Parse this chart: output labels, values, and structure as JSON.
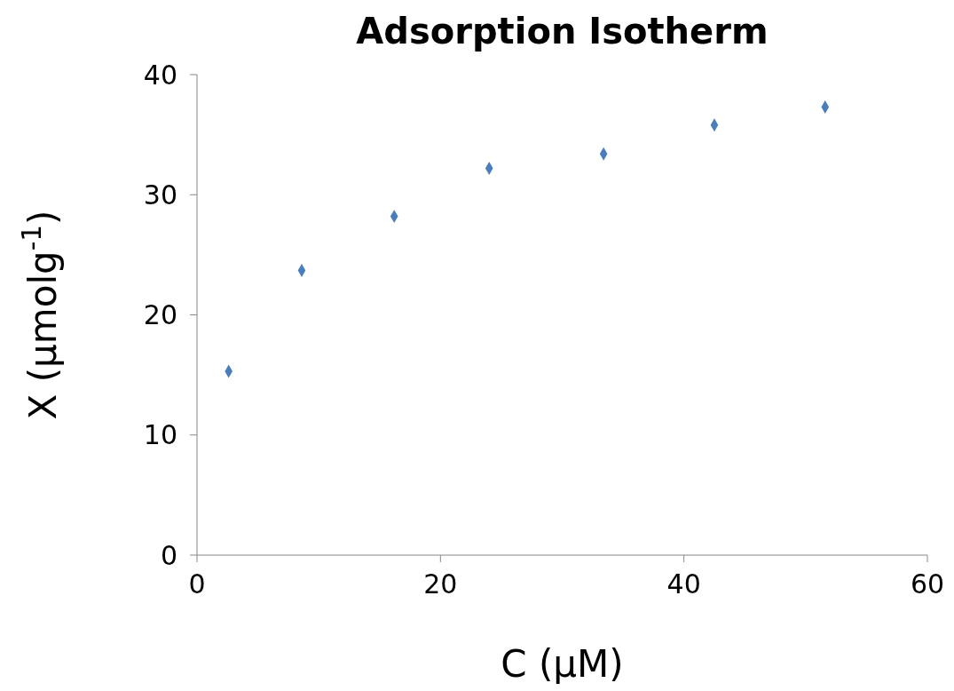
{
  "chart_data": {
    "type": "scatter",
    "title": "Adsorption Isotherm",
    "xlabel": "C (µM)",
    "ylabel": "X (µmolg$^{-1}$)",
    "x": [
      2.6,
      8.6,
      16.2,
      24.0,
      33.4,
      42.5,
      51.6
    ],
    "series": [
      {
        "color": "#4a7ebb",
        "values": [
          15.3,
          23.7,
          28.2,
          32.2,
          33.4,
          35.8,
          37.3
        ]
      }
    ],
    "xlim": [
      0,
      60
    ],
    "xticks": [
      0,
      20,
      40,
      60
    ],
    "ylim": [
      0,
      40
    ],
    "yticks": [
      0,
      10,
      20,
      30,
      40
    ],
    "marker": "diamond"
  }
}
